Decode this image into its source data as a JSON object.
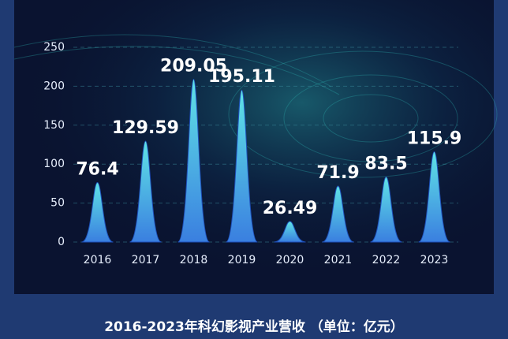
{
  "chart_data": {
    "type": "bar",
    "title": "2016-2023年科幻影视产业营收 （单位：亿元）",
    "categories": [
      "2016",
      "2017",
      "2018",
      "2019",
      "2020",
      "2021",
      "2022",
      "2023"
    ],
    "values": [
      76.4,
      129.59,
      209.05,
      195.11,
      26.49,
      71.9,
      83.5,
      115.9
    ],
    "color": "#5fe3e6",
    "ylim": [
      0,
      250
    ],
    "yticks": [
      0,
      50,
      100,
      150,
      200,
      250
    ],
    "grid": true
  }
}
